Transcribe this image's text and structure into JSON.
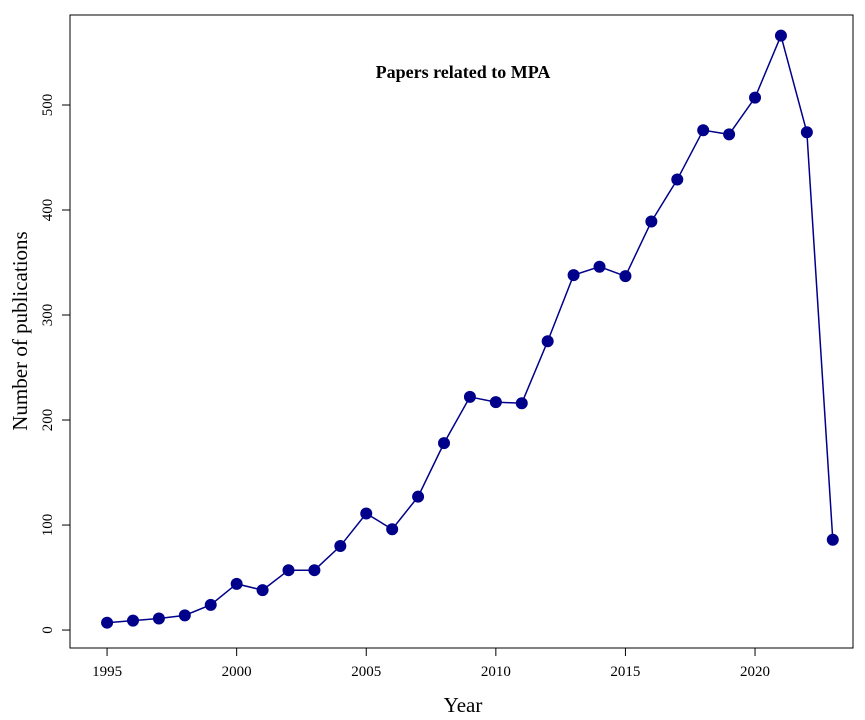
{
  "chart_data": {
    "type": "line",
    "title": "Papers related to MPA",
    "x_label": "Year",
    "y_label": "Number of publications",
    "x": [
      1995,
      1996,
      1997,
      1998,
      1999,
      2000,
      2001,
      2002,
      2003,
      2004,
      2005,
      2006,
      2007,
      2008,
      2009,
      2010,
      2011,
      2012,
      2013,
      2014,
      2015,
      2016,
      2017,
      2018,
      2019,
      2020,
      2021,
      2022,
      2023
    ],
    "values": [
      7,
      9,
      11,
      14,
      24,
      44,
      38,
      57,
      57,
      80,
      111,
      96,
      127,
      178,
      222,
      217,
      216,
      275,
      338,
      346,
      337,
      389,
      429,
      476,
      472,
      507,
      566,
      474,
      86
    ],
    "color": "#00008b",
    "xlim": [
      1993.57,
      2023.78
    ],
    "xticks": [
      1995,
      2000,
      2005,
      2010,
      2015,
      2020
    ],
    "ylim": [
      -17.1,
      585.7
    ],
    "yticks": [
      0,
      100,
      200,
      300,
      400,
      500
    ]
  }
}
